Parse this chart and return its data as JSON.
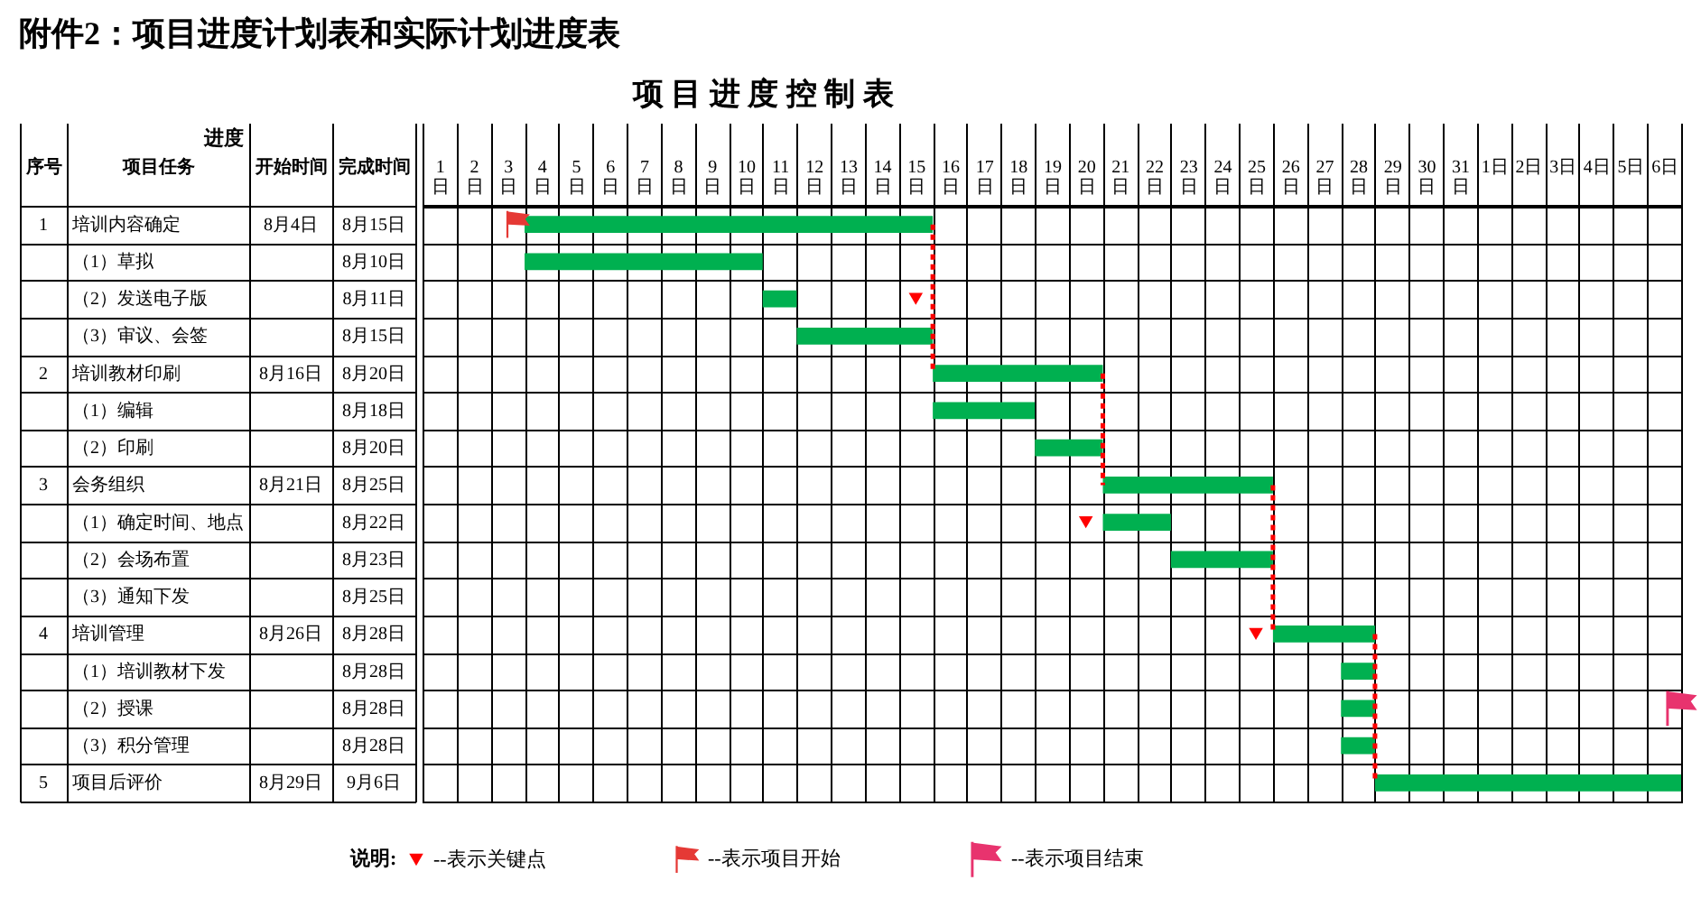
{
  "chart_data": [
    {
      "type": "other",
      "title": "附件2：项目进度计划表和实际计划进度表",
      "annotations": [
        "进度"
      ],
      "categories": [
        "序号",
        "项目任务",
        "开始时间",
        "完成时间"
      ],
      "cell_labels": [
        [
          "1",
          "培训内容确定",
          "8月4日",
          "8月15日"
        ],
        [
          null,
          "（1）草拟",
          null,
          "8月10日"
        ],
        [
          null,
          "（2）发送电子版",
          null,
          "8月11日"
        ],
        [
          null,
          "（3）审议、会签",
          null,
          "8月15日"
        ],
        [
          "2",
          "培训教材印刷",
          "8月16日",
          "8月20日"
        ],
        [
          null,
          "（1）编辑",
          null,
          "8月18日"
        ],
        [
          null,
          "（2）印刷",
          null,
          "8月20日"
        ],
        [
          "3",
          "会务组织",
          "8月21日",
          "8月25日"
        ],
        [
          null,
          "（1）确定时间、地点",
          null,
          "8月22日"
        ],
        [
          null,
          "（2）会场布置",
          null,
          "8月23日"
        ],
        [
          null,
          "（3）通知下发",
          null,
          "8月25日"
        ],
        [
          "4",
          "培训管理",
          "8月26日",
          "8月28日"
        ],
        [
          null,
          "（1）培训教材下发",
          null,
          "8月28日"
        ],
        [
          null,
          "（2）授课",
          null,
          "8月28日"
        ],
        [
          null,
          "（3）积分管理",
          null,
          "8月28日"
        ],
        [
          "5",
          "项目后评价",
          "8月29日",
          "9月6日"
        ]
      ]
    },
    {
      "type": "bar",
      "orientation": "horizontal",
      "title": "项 目 进 度 控 制 表",
      "categories": [
        "培训内容确定",
        "（1）草拟",
        "（2）发送电子版",
        "（3）审议、会签",
        "培训教材印刷",
        "（1）编辑",
        "（2）印刷",
        "会务组织",
        "（1）确定时间、地点",
        "（2）会场布置",
        "（3）通知下发",
        "培训管理",
        "（1）培训教材下发",
        "（2）授课",
        "（3）积分管理",
        "项目后评价"
      ],
      "xlim": [
        0.5,
        37.5
      ],
      "xticks": [
        {
          "value": 0.5,
          "label": null
        },
        {
          "value": 1,
          "label": "1日"
        },
        {
          "value": 1.5,
          "label": null
        },
        {
          "value": 2,
          "label": "2日"
        },
        {
          "value": 2.5,
          "label": null
        },
        {
          "value": 3,
          "label": "3日"
        },
        {
          "value": 3.5,
          "label": null
        },
        {
          "value": 4,
          "label": "4日"
        },
        {
          "value": 4.5,
          "label": null
        },
        {
          "value": 5,
          "label": "5日"
        },
        {
          "value": 5.5,
          "label": null
        },
        {
          "value": 6,
          "label": "6日"
        },
        {
          "value": 6.5,
          "label": null
        },
        {
          "value": 7,
          "label": "7日"
        },
        {
          "value": 7.5,
          "label": null
        },
        {
          "value": 8,
          "label": "8日"
        },
        {
          "value": 8.5,
          "label": null
        },
        {
          "value": 9,
          "label": "9日"
        },
        {
          "value": 9.5,
          "label": null
        },
        {
          "value": 10,
          "label": "10日"
        },
        {
          "value": 10.5,
          "label": null
        },
        {
          "value": 11,
          "label": "11日"
        },
        {
          "value": 11.5,
          "label": null
        },
        {
          "value": 12,
          "label": "12日"
        },
        {
          "value": 12.5,
          "label": null
        },
        {
          "value": 13,
          "label": "13日"
        },
        {
          "value": 13.5,
          "label": null
        },
        {
          "value": 14,
          "label": "14日"
        },
        {
          "value": 14.5,
          "label": null
        },
        {
          "value": 15,
          "label": "15日"
        },
        {
          "value": 15.5,
          "label": null
        },
        {
          "value": 16,
          "label": "16日"
        },
        {
          "value": 16.5,
          "label": null
        },
        {
          "value": 17,
          "label": "17日"
        },
        {
          "value": 17.5,
          "label": null
        },
        {
          "value": 18,
          "label": "18日"
        },
        {
          "value": 18.5,
          "label": null
        },
        {
          "value": 19,
          "label": "19日"
        },
        {
          "value": 19.5,
          "label": null
        },
        {
          "value": 20,
          "label": "20日"
        },
        {
          "value": 20.5,
          "label": null
        },
        {
          "value": 21,
          "label": "21日"
        },
        {
          "value": 21.5,
          "label": null
        },
        {
          "value": 22,
          "label": "22日"
        },
        {
          "value": 22.5,
          "label": null
        },
        {
          "value": 23,
          "label": "23日"
        },
        {
          "value": 23.5,
          "label": null
        },
        {
          "value": 24,
          "label": "24日"
        },
        {
          "value": 24.5,
          "label": null
        },
        {
          "value": 25,
          "label": "25日"
        },
        {
          "value": 25.5,
          "label": null
        },
        {
          "value": 26,
          "label": "26日"
        },
        {
          "value": 26.5,
          "label": null
        },
        {
          "value": 27,
          "label": "27日"
        },
        {
          "value": 27.5,
          "label": null
        },
        {
          "value": 28,
          "label": "28日"
        },
        {
          "value": 28.5,
          "label": null
        },
        {
          "value": 29,
          "label": "29日"
        },
        {
          "value": 29.5,
          "label": null
        },
        {
          "value": 30,
          "label": "30日"
        },
        {
          "value": 30.5,
          "label": null
        },
        {
          "value": 31,
          "label": "31日"
        },
        {
          "value": 31.5,
          "label": null
        },
        {
          "value": 32.5,
          "label": null
        },
        {
          "value": 33.5,
          "label": null
        },
        {
          "value": 34.5,
          "label": null
        },
        {
          "value": 35.5,
          "label": null
        },
        {
          "value": 36.5,
          "label": null
        },
        {
          "value": 37.5,
          "label": null
        }
      ],
      "x2lim": [
        -30.5,
        6.5
      ],
      "x2ticks": [
        {
          "value": 1,
          "label": "1日"
        },
        {
          "value": 2,
          "label": "2日"
        },
        {
          "value": 3,
          "label": "3日"
        },
        {
          "value": 4,
          "label": "4日"
        },
        {
          "value": 5,
          "label": "5日"
        },
        {
          "value": 6,
          "label": "6日"
        }
      ],
      "grid": true,
      "tick_labels": "x",
      "legend": "bottom",
      "legend_title": "说明:",
      "series": [
        {
          "type": "bar",
          "color": "#00b050",
          "base": [
            3.5,
            3.5,
            10.5,
            11.5,
            15.5,
            15.5,
            18.5,
            20.5,
            20.5,
            22.5,
            null,
            25.5,
            27.5,
            27.5,
            27.5,
            28.5
          ],
          "values": [
            12,
            7,
            1,
            4,
            5,
            3,
            2,
            5,
            2,
            3,
            null,
            3,
            1,
            1,
            1,
            9
          ]
        },
        {
          "type": "line",
          "color": "#ff0000",
          "line_style": "dotted",
          "x": [
            "培训内容确定",
            "培训教材印刷"
          ],
          "values": [
            15.5,
            15.5
          ]
        },
        {
          "type": "line",
          "color": "#ff0000",
          "line_style": "dotted",
          "x": [
            "培训教材印刷",
            "会务组织"
          ],
          "values": [
            20.5,
            20.5
          ]
        },
        {
          "type": "line",
          "color": "#ff0000",
          "line_style": "dotted",
          "x": [
            "会务组织",
            "培训管理"
          ],
          "values": [
            25.5,
            25.5
          ]
        },
        {
          "type": "line",
          "color": "#ff0000",
          "line_style": "dotted",
          "x": [
            "培训管理",
            "项目后评价"
          ],
          "values": [
            28.5,
            28.5
          ]
        },
        {
          "type": "scatter",
          "name": "--表示关键点",
          "color": "#ff0000",
          "marker": "triangle",
          "x": [
            "（2）发送电子版",
            "（1）确定时间、地点",
            "培训管理"
          ],
          "values": [
            15,
            20,
            25
          ]
        },
        {
          "type": "scatter",
          "name": "--表示项目开始",
          "color": "#e53935",
          "x": [
            "培训内容确定"
          ],
          "values": [
            3.3
          ]
        },
        {
          "type": "scatter",
          "name": "--表示项目结束",
          "color": "#e8336e",
          "x": [
            "（2）授课"
          ],
          "values": [
            37.5
          ]
        }
      ]
    }
  ]
}
